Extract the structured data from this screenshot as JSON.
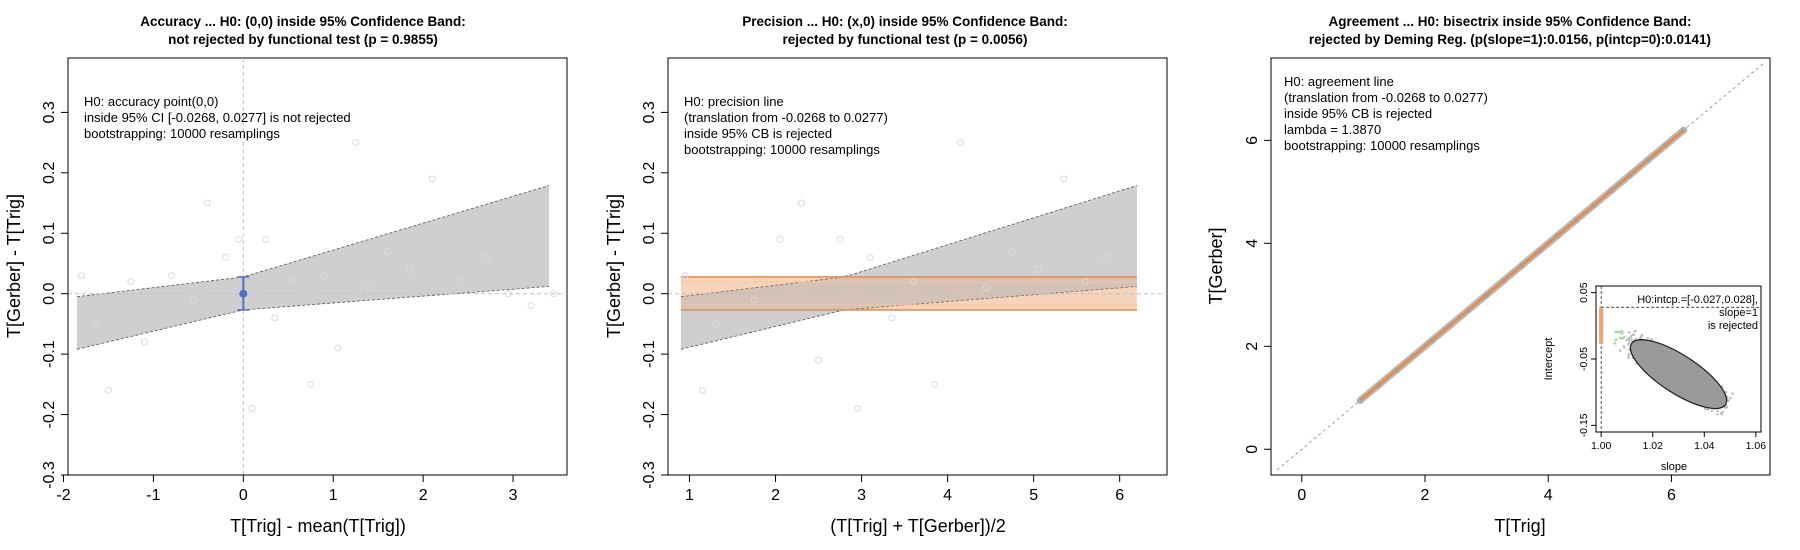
{
  "panels": [
    {
      "title_line1": "Accuracy ... H0: (0,0) inside 95% Confidence Band:",
      "title_line2": "not rejected by functional test (p = 0.9855)",
      "annotation": [
        "H0: accuracy point(0,0)",
        "inside 95% CI [-0.0268, 0.0277] is not rejected",
        "bootstrapping: 10000 resamplings"
      ],
      "xlabel": "T[Trig] - mean(T[Trig])",
      "ylabel": "T[Gerber] - T[Trig]"
    },
    {
      "title_line1": "Precision ... H0: (x,0) inside 95% Confidence Band:",
      "title_line2": "rejected by functional test (p = 0.0056)",
      "annotation": [
        "H0: precision line",
        "(translation from -0.0268 to 0.0277)",
        "inside 95% CB is rejected",
        "bootstrapping: 10000 resamplings"
      ],
      "xlabel": "(T[Trig] + T[Gerber])/2",
      "ylabel": "T[Gerber] - T[Trig]"
    },
    {
      "title_line1": "Agreement ... H0: bisectrix inside 95% Confidence Band:",
      "title_line2": "rejected by Deming Reg. (p(slope=1):0.0156, p(intcp=0):0.0141)",
      "annotation": [
        "H0: agreement line",
        "(translation from -0.0268 to 0.0277)",
        "inside 95% CB is rejected",
        "lambda = 1.3870",
        "bootstrapping: 10000 resamplings"
      ],
      "xlabel": "T[Trig]",
      "ylabel": "T[Gerber]",
      "inset": {
        "annotation": [
          "H0:intcp.=[-0.027,0.028],",
          "slope=1",
          "is rejected"
        ],
        "xlabel": "slope",
        "ylabel": "Intercept"
      }
    }
  ],
  "chart_data": [
    {
      "type": "scatter",
      "title": "Accuracy ... H0: (0,0) inside 95% Confidence Band: not rejected by functional test (p = 0.9855)",
      "xlabel": "T[Trig] - mean(T[Trig])",
      "ylabel": "T[Gerber] - T[Trig]",
      "xlim": [
        -1.95,
        3.6
      ],
      "ylim": [
        -0.3,
        0.39
      ],
      "xticks": [
        "-2",
        "-1",
        "0",
        "1",
        "2",
        "3"
      ],
      "yticks": [
        "-0.3",
        "-0.2",
        "-0.1",
        "0.0",
        "0.1",
        "0.2",
        "0.3"
      ],
      "points": {
        "x": [
          -1.8,
          -1.65,
          -1.5,
          -1.25,
          -1.1,
          -0.8,
          -0.55,
          -0.4,
          -0.2,
          -0.05,
          0.1,
          0.25,
          0.35,
          0.55,
          0.75,
          0.9,
          1.05,
          1.25,
          1.4,
          1.6,
          1.85,
          2.1,
          2.4,
          2.7,
          2.95,
          3.2,
          3.45
        ],
        "y": [
          0.03,
          -0.05,
          -0.16,
          0.02,
          -0.08,
          0.03,
          -0.01,
          0.15,
          0.06,
          0.09,
          -0.19,
          0.09,
          -0.04,
          0.02,
          -0.15,
          0.03,
          -0.09,
          0.25,
          0.01,
          0.07,
          0.04,
          0.19,
          0.02,
          0.06,
          0.0,
          -0.02,
          0.0
        ]
      },
      "confidence_band": {
        "x": [
          -1.85,
          0,
          3.4
        ],
        "lower": [
          -0.092,
          -0.0268,
          0.012
        ],
        "upper": [
          -0.005,
          0.0277,
          0.179
        ]
      },
      "accuracy_point": {
        "x": 0,
        "y": 0,
        "ci": [
          -0.0268,
          0.0277
        ]
      },
      "grid": false
    },
    {
      "type": "scatter",
      "title": "Precision ... H0: (x,0) inside 95% Confidence Band: rejected by functional test (p = 0.0056)",
      "xlabel": "(T[Trig] + T[Gerber])/2",
      "ylabel": "T[Gerber] - T[Trig]",
      "xlim": [
        0.75,
        6.55
      ],
      "ylim": [
        -0.3,
        0.39
      ],
      "xticks": [
        "1",
        "2",
        "3",
        "4",
        "5",
        "6"
      ],
      "yticks": [
        "-0.3",
        "-0.2",
        "-0.1",
        "0.0",
        "0.1",
        "0.2",
        "0.3"
      ],
      "points": {
        "x": [
          0.95,
          1.15,
          1.3,
          1.55,
          1.75,
          2.05,
          2.3,
          2.5,
          2.75,
          2.95,
          3.1,
          3.35,
          3.6,
          3.85,
          4.15,
          4.45,
          4.75,
          5.05,
          5.35,
          5.6,
          5.85,
          6.1
        ],
        "y": [
          0.03,
          -0.16,
          -0.05,
          0.02,
          -0.01,
          0.09,
          0.15,
          -0.11,
          0.09,
          -0.19,
          0.06,
          -0.04,
          0.02,
          -0.15,
          0.25,
          0.01,
          0.07,
          0.04,
          0.19,
          0.02,
          0.06,
          0.0
        ]
      },
      "confidence_band": {
        "x": [
          0.9,
          2.8,
          6.2
        ],
        "lower": [
          -0.092,
          -0.0268,
          0.012
        ],
        "upper": [
          -0.005,
          0.0277,
          0.179
        ]
      },
      "precision_band": {
        "lower": -0.0268,
        "upper": 0.0277
      },
      "grid": false
    },
    {
      "type": "scatter",
      "title": "Agreement ... H0: bisectrix inside 95% Confidence Band: rejected by Deming Reg. (p(slope=1):0.0156, p(intcp=0):0.0141)",
      "xlabel": "T[Trig]",
      "ylabel": "T[Gerber]",
      "xlim": [
        -0.5,
        7.6
      ],
      "ylim": [
        -0.5,
        7.6
      ],
      "xticks": [
        "0",
        "2",
        "4",
        "6"
      ],
      "yticks": [
        "0",
        "2",
        "4",
        "6"
      ],
      "regression_line": {
        "x": [
          0.95,
          6.2
        ],
        "y": [
          0.95,
          6.2
        ]
      },
      "bisectrix": {
        "x": [
          -0.4,
          7.5
        ],
        "y": [
          -0.4,
          7.5
        ]
      },
      "grid": false,
      "inset": {
        "type": "scatter",
        "xlabel": "slope",
        "ylabel": "Intercept",
        "xlim": [
          0.998,
          1.062
        ],
        "ylim": [
          -0.16,
          0.06
        ],
        "xticks": [
          "1.00",
          "1.02",
          "1.04",
          "1.06"
        ],
        "yticks": [
          "-0.15",
          "-0.05",
          "0.05"
        ],
        "ellipse": {
          "center_slope": 1.03,
          "center_intercept": -0.0728,
          "note": "bootstrap slope/intercept 95% region"
        },
        "h0_segment": {
          "slope": 1.0,
          "intercept": [
            -0.027,
            0.028
          ]
        }
      }
    }
  ]
}
